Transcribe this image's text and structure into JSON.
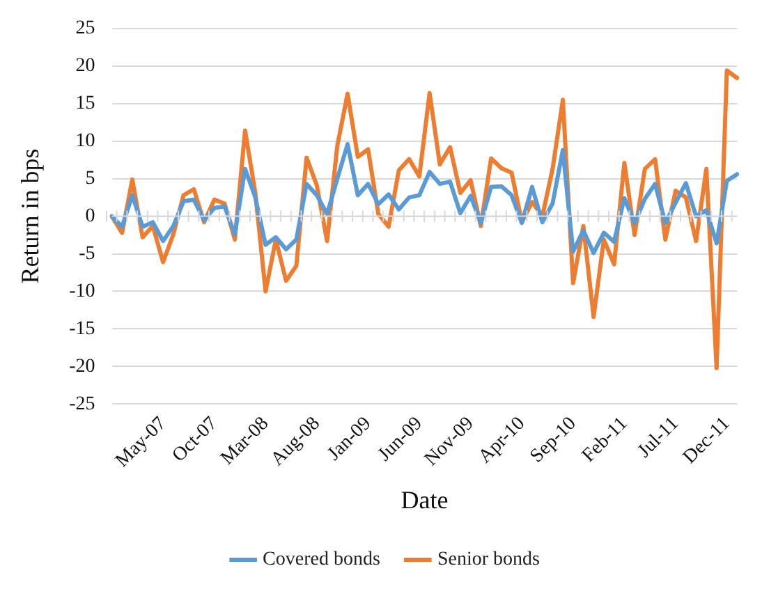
{
  "chart_data": {
    "type": "line",
    "xlabel": "Date",
    "ylabel": "Return in bps",
    "categories": [
      null,
      null,
      null,
      null,
      null,
      "May-07",
      null,
      null,
      null,
      null,
      "Oct-07",
      null,
      null,
      null,
      null,
      "Mar-08",
      null,
      null,
      null,
      null,
      "Aug-08",
      null,
      null,
      null,
      null,
      "Jan-09",
      null,
      null,
      null,
      null,
      "Jun-09",
      null,
      null,
      null,
      null,
      "Nov-09",
      null,
      null,
      null,
      null,
      "Apr-10",
      null,
      null,
      null,
      null,
      "Sep-10",
      null,
      null,
      null,
      null,
      "Feb-11",
      null,
      null,
      null,
      null,
      "Jul-11",
      null,
      null,
      null,
      null,
      "Dec-11",
      null
    ],
    "series": [
      {
        "name": "Covered bonds",
        "color": "#5b9bd5",
        "values": [
          0,
          -1.4,
          2.8,
          -1.4,
          -0.8,
          -3.3,
          -1.3,
          2.0,
          2.2,
          -0.5,
          1.1,
          1.3,
          -2.4,
          6.3,
          2.5,
          -3.8,
          -2.8,
          -4.4,
          -3.1,
          4.3,
          2.8,
          0.3,
          5,
          9.6,
          2.8,
          4.3,
          1.6,
          2.9,
          0.9,
          2.5,
          2.8,
          5.9,
          4.3,
          4.6,
          0.4,
          2.7,
          -0.9,
          3.9,
          4.0,
          2.8,
          -0.9,
          3.9,
          -0.8,
          1.7,
          8.8,
          -4.7,
          -1.9,
          -4.9,
          -2.2,
          -3.4,
          2.4,
          -0.9,
          2.3,
          4.3,
          -0.9,
          1.8,
          4.4,
          0,
          0.8,
          -3.6,
          4.7,
          5.6
        ]
      },
      {
        "name": "Senior bonds",
        "color": "#ed7d31",
        "values": [
          0,
          -2.2,
          4.9,
          -2.8,
          -1.3,
          -6.1,
          -2.4,
          2.8,
          3.6,
          -0.8,
          2.2,
          1.7,
          -3.1,
          11.4,
          3.1,
          -10,
          -3.1,
          -8.6,
          -6.6,
          7.8,
          4.1,
          -3.3,
          9.4,
          16.3,
          7.9,
          8.9,
          0.3,
          -1.4,
          6.1,
          7.6,
          5.3,
          16.4,
          6.9,
          9.2,
          3.1,
          4.8,
          -1.3,
          7.7,
          6.4,
          5.8,
          -0.8,
          1.9,
          0,
          6.3,
          15.5,
          -8.9,
          -1.3,
          -13.4,
          -3.1,
          -6.4,
          7.1,
          -2.5,
          6.3,
          7.6,
          -3.1,
          3.4,
          2.5,
          -3.3,
          6.3,
          -20.2,
          19.4,
          18.4
        ]
      }
    ],
    "ylim": [
      -25,
      25
    ],
    "yticks": [
      -25,
      -20,
      -15,
      -10,
      -5,
      0,
      5,
      10,
      15,
      20,
      25
    ],
    "grid": "y",
    "legend": "bottom",
    "marker": "none",
    "line_style": "solid"
  }
}
